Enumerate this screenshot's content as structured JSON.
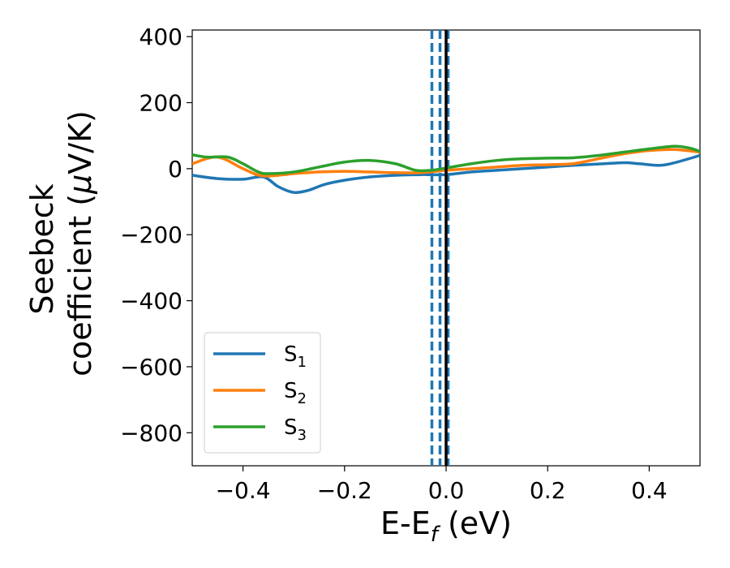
{
  "chart_data": {
    "type": "line",
    "xlabel": "E-E",
    "xlabel_sub": "f",
    "xlabel_unit": " (eV)",
    "ylabel_line1": "Seebeck",
    "ylabel_line2_prefix": "coefficient  (",
    "ylabel_mu": "μ",
    "ylabel_line2_suffix": "V/K)",
    "xlim": [
      -0.5,
      0.5
    ],
    "ylim": [
      -900,
      420
    ],
    "xticks": [
      -0.4,
      -0.2,
      0.0,
      0.2,
      0.4
    ],
    "xtick_labels": [
      "−0.4",
      "−0.2",
      "0.0",
      "0.2",
      "0.4"
    ],
    "yticks": [
      400,
      200,
      0,
      -200,
      -400,
      -600,
      -800
    ],
    "ytick_labels": [
      "400",
      "200",
      "0",
      "−200",
      "−400",
      "−600",
      "−800"
    ],
    "legend_position": "lower-left",
    "grid": false,
    "vlines": [
      {
        "x": -0.028,
        "style": "dashed",
        "color": "#1f77b4"
      },
      {
        "x": -0.012,
        "style": "dashed",
        "color": "#1f77b4"
      },
      {
        "x": 0.004,
        "style": "dashed",
        "color": "#1f77b4"
      },
      {
        "x": 0.0,
        "style": "solid",
        "color": "#000000"
      }
    ],
    "series": [
      {
        "name": "S",
        "sub": "1",
        "color": "#1f77b4",
        "x": [
          -0.5,
          -0.45,
          -0.4,
          -0.36,
          -0.33,
          -0.3,
          -0.27,
          -0.24,
          -0.2,
          -0.15,
          -0.1,
          -0.05,
          0.0,
          0.05,
          0.1,
          0.15,
          0.2,
          0.25,
          0.3,
          0.35,
          0.38,
          0.42,
          0.45,
          0.5
        ],
        "y": [
          -20,
          -30,
          -32,
          -25,
          -55,
          -72,
          -65,
          -48,
          -35,
          -25,
          -20,
          -18,
          -18,
          -10,
          -5,
          0,
          5,
          10,
          14,
          18,
          15,
          10,
          18,
          40
        ]
      },
      {
        "name": "S",
        "sub": "2",
        "color": "#ff7f0e",
        "x": [
          -0.5,
          -0.45,
          -0.4,
          -0.36,
          -0.3,
          -0.25,
          -0.2,
          -0.15,
          -0.1,
          -0.05,
          0.0,
          0.05,
          0.1,
          0.15,
          0.2,
          0.25,
          0.3,
          0.35,
          0.4,
          0.45,
          0.5
        ],
        "y": [
          15,
          35,
          0,
          -22,
          -15,
          -10,
          -8,
          -10,
          -12,
          -12,
          -5,
          0,
          5,
          10,
          12,
          15,
          30,
          45,
          55,
          58,
          50
        ]
      },
      {
        "name": "S",
        "sub": "3",
        "color": "#2ca02c",
        "x": [
          -0.5,
          -0.47,
          -0.43,
          -0.4,
          -0.37,
          -0.35,
          -0.3,
          -0.25,
          -0.2,
          -0.15,
          -0.1,
          -0.06,
          -0.03,
          0.0,
          0.05,
          0.1,
          0.15,
          0.2,
          0.25,
          0.3,
          0.35,
          0.4,
          0.45,
          0.48,
          0.5
        ],
        "y": [
          42,
          35,
          35,
          15,
          -10,
          -15,
          -10,
          5,
          20,
          25,
          15,
          -5,
          -5,
          2,
          15,
          25,
          30,
          32,
          33,
          40,
          50,
          60,
          68,
          62,
          52
        ]
      }
    ]
  }
}
